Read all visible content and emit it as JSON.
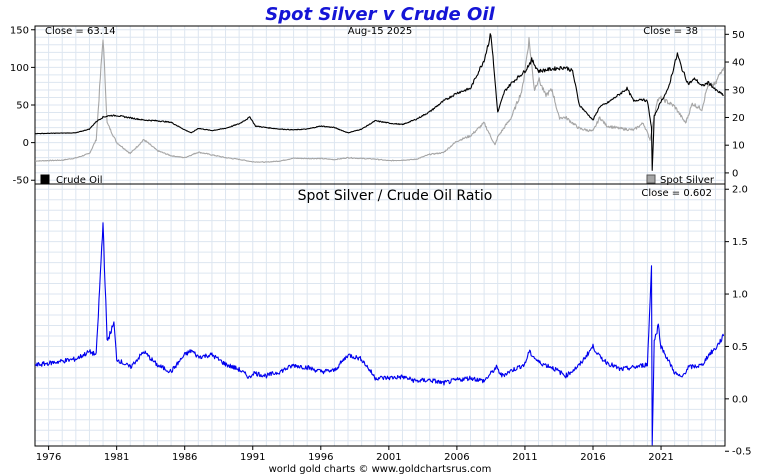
{
  "title": "Spot Silver v Crude Oil",
  "colors": {
    "title": "#1515d6",
    "crude_oil": "#000000",
    "spot_silver": "#a6a6a6",
    "ratio": "#0000ee",
    "grid": "#dde6f0"
  },
  "chart_data": [
    {
      "type": "line",
      "title": "",
      "date_label": "Aug-15  2025",
      "left_close_label": "Close = 63.14",
      "right_close_label": "Close = 38",
      "grid": true,
      "legend_placement": "bottom-left and bottom-right",
      "x_range": [
        1975.0,
        2025.7
      ],
      "x_tick_labels": [
        "1976",
        "1981",
        "1986",
        "1991",
        "1996",
        "2001",
        "2006",
        "2011",
        "2016",
        "2021"
      ],
      "y_left": {
        "ylim": [
          -55,
          155
        ],
        "ticks": [
          -50,
          0,
          50,
          100,
          150
        ],
        "ylabel": ""
      },
      "y_right": {
        "ylim": [
          -4,
          53
        ],
        "ticks": [
          0,
          10,
          20,
          30,
          40,
          50
        ],
        "ylabel": ""
      },
      "series": [
        {
          "name": "Crude Oil",
          "axis": "left",
          "points": [
            [
              1975.0,
              12
            ],
            [
              1978.0,
              13
            ],
            [
              1979.0,
              18
            ],
            [
              1979.5,
              28
            ],
            [
              1980.0,
              34
            ],
            [
              1980.5,
              36
            ],
            [
              1981.0,
              36
            ],
            [
              1982.0,
              33
            ],
            [
              1983.0,
              30
            ],
            [
              1984.0,
              29
            ],
            [
              1985.0,
              27
            ],
            [
              1986.0,
              17
            ],
            [
              1986.5,
              13
            ],
            [
              1987.0,
              19
            ],
            [
              1988.0,
              16
            ],
            [
              1989.0,
              19
            ],
            [
              1990.0,
              25
            ],
            [
              1990.8,
              34
            ],
            [
              1991.2,
              22
            ],
            [
              1992.0,
              20
            ],
            [
              1993.0,
              18
            ],
            [
              1994.0,
              17
            ],
            [
              1995.0,
              18
            ],
            [
              1996.0,
              22
            ],
            [
              1997.0,
              20
            ],
            [
              1998.0,
              13
            ],
            [
              1999.0,
              18
            ],
            [
              2000.0,
              29
            ],
            [
              2001.0,
              26
            ],
            [
              2002.0,
              24
            ],
            [
              2003.0,
              31
            ],
            [
              2004.0,
              41
            ],
            [
              2005.0,
              55
            ],
            [
              2006.0,
              66
            ],
            [
              2007.0,
              72
            ],
            [
              2008.0,
              110
            ],
            [
              2008.5,
              145
            ],
            [
              2009.0,
              40
            ],
            [
              2009.5,
              68
            ],
            [
              2010.0,
              79
            ],
            [
              2011.0,
              95
            ],
            [
              2011.5,
              110
            ],
            [
              2012.0,
              95
            ],
            [
              2013.0,
              98
            ],
            [
              2014.0,
              100
            ],
            [
              2014.5,
              95
            ],
            [
              2015.0,
              50
            ],
            [
              2016.0,
              30
            ],
            [
              2016.5,
              48
            ],
            [
              2017.0,
              52
            ],
            [
              2018.0,
              65
            ],
            [
              2018.5,
              72
            ],
            [
              2019.0,
              55
            ],
            [
              2019.5,
              58
            ],
            [
              2020.0,
              55
            ],
            [
              2020.3,
              20
            ],
            [
              2020.35,
              -37
            ],
            [
              2020.5,
              35
            ],
            [
              2021.0,
              55
            ],
            [
              2021.5,
              70
            ],
            [
              2022.2,
              118
            ],
            [
              2022.5,
              100
            ],
            [
              2023.0,
              78
            ],
            [
              2023.5,
              85
            ],
            [
              2024.0,
              75
            ],
            [
              2024.5,
              80
            ],
            [
              2025.0,
              70
            ],
            [
              2025.6,
              63
            ]
          ]
        },
        {
          "name": "Spot Silver",
          "axis": "right",
          "points": [
            [
              1975.0,
              4.3
            ],
            [
              1977.0,
              4.6
            ],
            [
              1978.0,
              5.4
            ],
            [
              1979.0,
              7.0
            ],
            [
              1979.5,
              12
            ],
            [
              1980.0,
              49
            ],
            [
              1980.3,
              18
            ],
            [
              1981.0,
              11
            ],
            [
              1982.0,
              7
            ],
            [
              1983.0,
              12
            ],
            [
              1984.0,
              8
            ],
            [
              1985.0,
              6.2
            ],
            [
              1986.0,
              5.5
            ],
            [
              1987.0,
              7.5
            ],
            [
              1988.0,
              6.5
            ],
            [
              1989.0,
              5.5
            ],
            [
              1990.0,
              4.9
            ],
            [
              1991.0,
              4.0
            ],
            [
              1992.0,
              3.9
            ],
            [
              1993.0,
              4.3
            ],
            [
              1994.0,
              5.3
            ],
            [
              1995.0,
              5.2
            ],
            [
              1996.0,
              5.2
            ],
            [
              1997.0,
              4.8
            ],
            [
              1998.0,
              5.5
            ],
            [
              1999.0,
              5.2
            ],
            [
              2000.0,
              5.0
            ],
            [
              2001.0,
              4.4
            ],
            [
              2002.0,
              4.6
            ],
            [
              2003.0,
              4.9
            ],
            [
              2004.0,
              6.7
            ],
            [
              2005.0,
              7.3
            ],
            [
              2006.0,
              11.5
            ],
            [
              2007.0,
              13.4
            ],
            [
              2008.0,
              18
            ],
            [
              2008.8,
              10
            ],
            [
              2009.0,
              13
            ],
            [
              2010.0,
              20
            ],
            [
              2010.8,
              30
            ],
            [
              2011.3,
              48
            ],
            [
              2011.7,
              30
            ],
            [
              2012.0,
              34
            ],
            [
              2012.5,
              28
            ],
            [
              2013.0,
              30
            ],
            [
              2013.5,
              20
            ],
            [
              2014.0,
              20
            ],
            [
              2015.0,
              16
            ],
            [
              2016.0,
              15
            ],
            [
              2016.5,
              20
            ],
            [
              2017.0,
              17
            ],
            [
              2018.0,
              16
            ],
            [
              2019.0,
              15.5
            ],
            [
              2019.7,
              18
            ],
            [
              2020.2,
              12
            ],
            [
              2020.7,
              26
            ],
            [
              2021.0,
              27
            ],
            [
              2022.0,
              24
            ],
            [
              2022.8,
              18
            ],
            [
              2023.3,
              25
            ],
            [
              2024.0,
              23
            ],
            [
              2024.4,
              31
            ],
            [
              2025.0,
              32
            ],
            [
              2025.5,
              38
            ],
            [
              2025.6,
              38
            ]
          ]
        }
      ]
    },
    {
      "type": "line",
      "title": "Spot Silver  /  Crude Oil Ratio",
      "close_label": "Close = 0.602",
      "grid": true,
      "x_range": [
        1975.0,
        2025.7
      ],
      "x_tick_labels": [
        "1976",
        "1981",
        "1986",
        "1991",
        "1996",
        "2001",
        "2006",
        "2011",
        "2016",
        "2021"
      ],
      "ylim": [
        -0.45,
        2.05
      ],
      "y_ticks": [
        -0.5,
        0.0,
        0.5,
        1.0,
        1.5,
        2.0
      ],
      "source_label": "world gold charts © www.goldchartsrus.com",
      "series": [
        {
          "name": "",
          "points": [
            [
              1975.0,
              0.32
            ],
            [
              1976.0,
              0.34
            ],
            [
              1977.0,
              0.36
            ],
            [
              1978.0,
              0.38
            ],
            [
              1979.0,
              0.45
            ],
            [
              1979.5,
              0.42
            ],
            [
              1980.0,
              1.68
            ],
            [
              1980.3,
              0.55
            ],
            [
              1980.8,
              0.72
            ],
            [
              1981.0,
              0.38
            ],
            [
              1982.0,
              0.3
            ],
            [
              1983.0,
              0.45
            ],
            [
              1984.0,
              0.32
            ],
            [
              1985.0,
              0.26
            ],
            [
              1986.0,
              0.42
            ],
            [
              1986.5,
              0.46
            ],
            [
              1987.0,
              0.4
            ],
            [
              1988.0,
              0.42
            ],
            [
              1989.0,
              0.33
            ],
            [
              1990.0,
              0.28
            ],
            [
              1990.8,
              0.2
            ],
            [
              1991.0,
              0.25
            ],
            [
              1992.0,
              0.22
            ],
            [
              1993.0,
              0.26
            ],
            [
              1994.0,
              0.32
            ],
            [
              1995.0,
              0.3
            ],
            [
              1996.0,
              0.26
            ],
            [
              1997.0,
              0.27
            ],
            [
              1998.0,
              0.42
            ],
            [
              1999.0,
              0.38
            ],
            [
              2000.0,
              0.2
            ],
            [
              2001.0,
              0.2
            ],
            [
              2002.0,
              0.21
            ],
            [
              2003.0,
              0.17
            ],
            [
              2004.0,
              0.18
            ],
            [
              2005.0,
              0.15
            ],
            [
              2006.0,
              0.18
            ],
            [
              2007.0,
              0.2
            ],
            [
              2008.0,
              0.17
            ],
            [
              2008.9,
              0.3
            ],
            [
              2009.3,
              0.22
            ],
            [
              2010.0,
              0.27
            ],
            [
              2011.0,
              0.33
            ],
            [
              2011.3,
              0.45
            ],
            [
              2012.0,
              0.35
            ],
            [
              2013.0,
              0.3
            ],
            [
              2014.0,
              0.22
            ],
            [
              2015.0,
              0.32
            ],
            [
              2016.0,
              0.5
            ],
            [
              2016.5,
              0.4
            ],
            [
              2017.0,
              0.35
            ],
            [
              2018.0,
              0.28
            ],
            [
              2019.0,
              0.3
            ],
            [
              2020.0,
              0.33
            ],
            [
              2020.3,
              1.26
            ],
            [
              2020.35,
              -0.42
            ],
            [
              2020.5,
              0.55
            ],
            [
              2020.8,
              0.7
            ],
            [
              2021.0,
              0.5
            ],
            [
              2022.0,
              0.25
            ],
            [
              2022.5,
              0.2
            ],
            [
              2023.0,
              0.3
            ],
            [
              2024.0,
              0.32
            ],
            [
              2024.5,
              0.42
            ],
            [
              2025.0,
              0.48
            ],
            [
              2025.6,
              0.6
            ]
          ]
        }
      ]
    }
  ]
}
